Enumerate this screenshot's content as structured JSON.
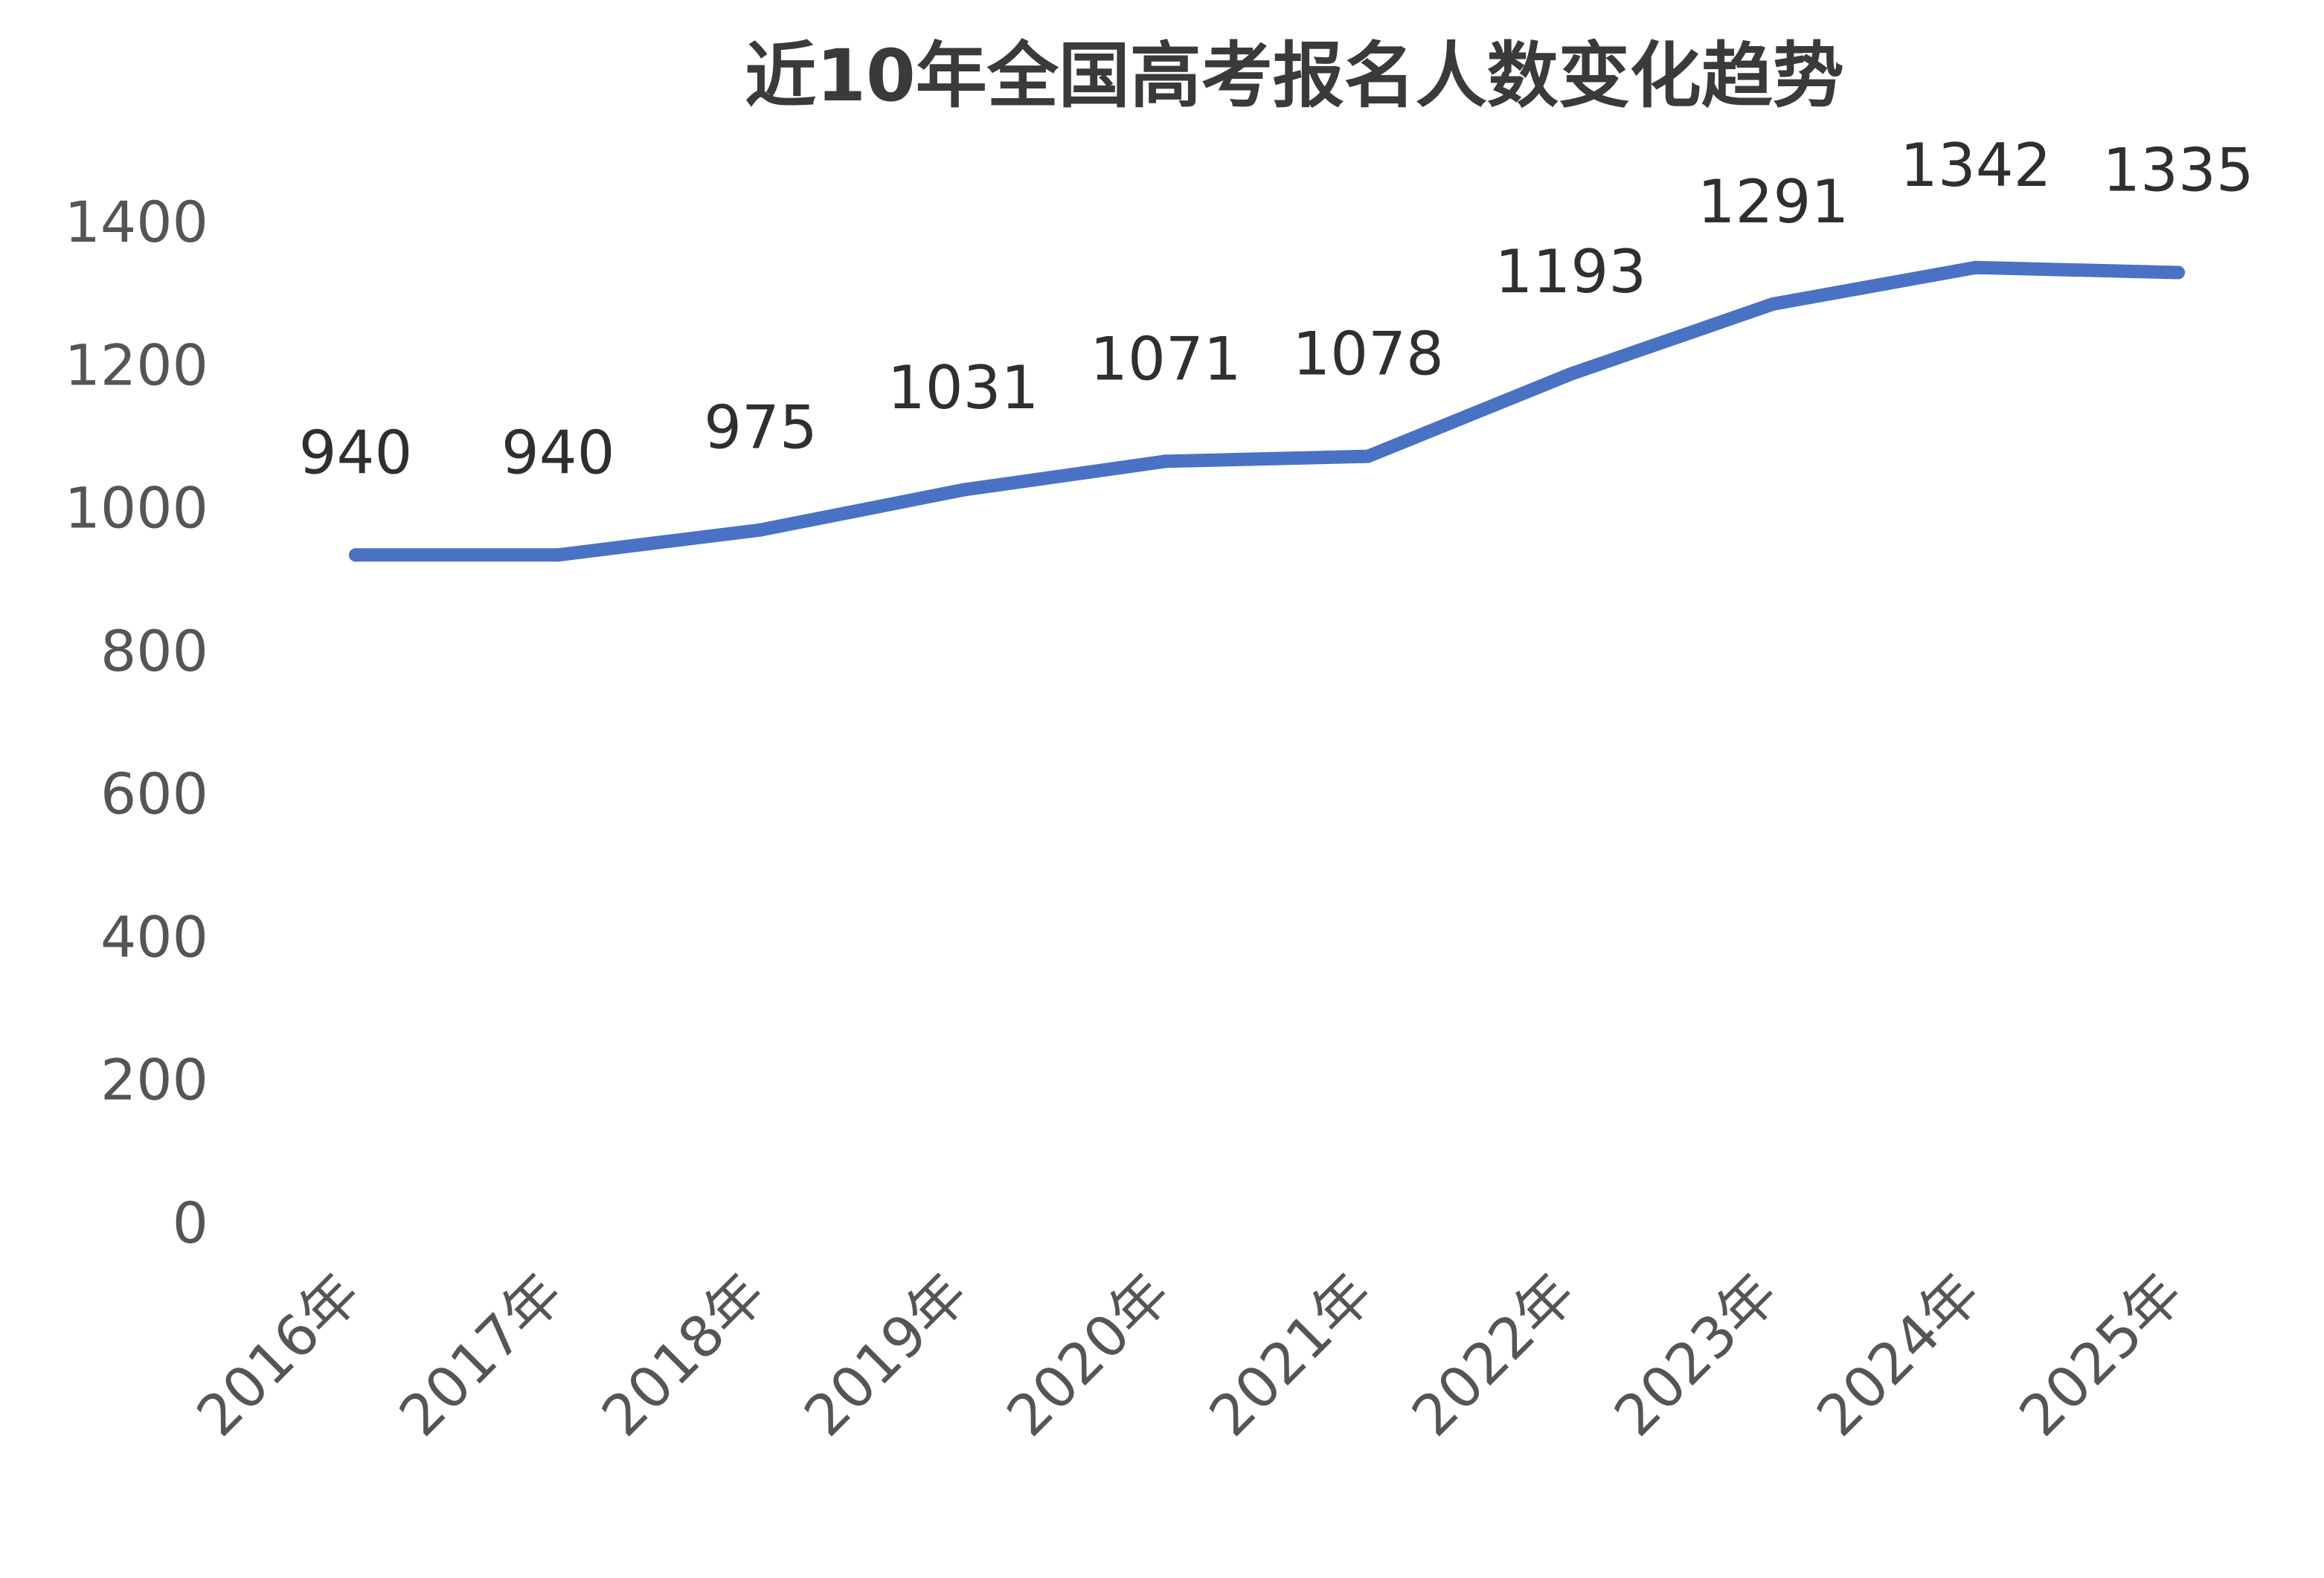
{
  "chart_data": {
    "type": "line",
    "title": "近10年全国高考报名人数变化趋势",
    "xlabel": "",
    "ylabel": "",
    "categories": [
      "2016年",
      "2017年",
      "2018年",
      "2019年",
      "2020年",
      "2021年",
      "2022年",
      "2023年",
      "2024年",
      "2025年"
    ],
    "series": [
      {
        "values": [
          940,
          940,
          975,
          1031,
          1071,
          1078,
          1193,
          1291,
          1342,
          1335
        ],
        "color": "#4a72c4"
      }
    ],
    "y_ticks": [
      "0",
      "200",
      "400",
      "600",
      "800",
      "1000",
      "1200",
      "1400"
    ],
    "ylim": [
      0,
      1400
    ],
    "grid": false,
    "legend": "none"
  }
}
